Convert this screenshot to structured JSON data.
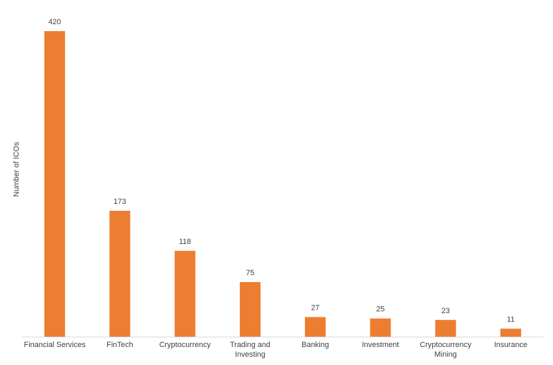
{
  "chart_data": {
    "type": "bar",
    "y_label": "Number of ICOs",
    "categories": [
      "Financial Services",
      "FinTech",
      "Cryptocurrency",
      "Trading and Investing",
      "Banking",
      "Investment",
      "Cryptocurrency Mining",
      "Insurance"
    ],
    "values": [
      420,
      173,
      118,
      75,
      27,
      25,
      23,
      11
    ],
    "color": "#ed7d31"
  }
}
